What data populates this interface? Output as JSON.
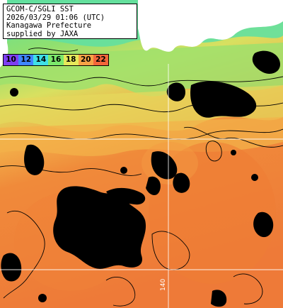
{
  "info": {
    "line1": "GCOM-C/SGLI SST",
    "line2": "2026/03/29 01:06 (UTC)",
    "line3": "Kanagawa Prefecture",
    "line4": "supplied by JAXA"
  },
  "legend": {
    "labels": [
      "10",
      "12",
      "14",
      "16",
      "18",
      "20",
      "22"
    ],
    "colors": [
      "#7e3ff2",
      "#3f86ff",
      "#3fe0e6",
      "#7be86b",
      "#e6e85a",
      "#f6a246",
      "#f2663a"
    ]
  },
  "grid": {
    "lon_label": "140"
  },
  "colors": {
    "land": "#ffffff",
    "cloud": "#000000",
    "contour": "#000000",
    "grid": "#ffffff",
    "sst_cold": "#6fe08a",
    "sst_mid": "#e8e060",
    "sst_warm": "#f08a3a"
  }
}
